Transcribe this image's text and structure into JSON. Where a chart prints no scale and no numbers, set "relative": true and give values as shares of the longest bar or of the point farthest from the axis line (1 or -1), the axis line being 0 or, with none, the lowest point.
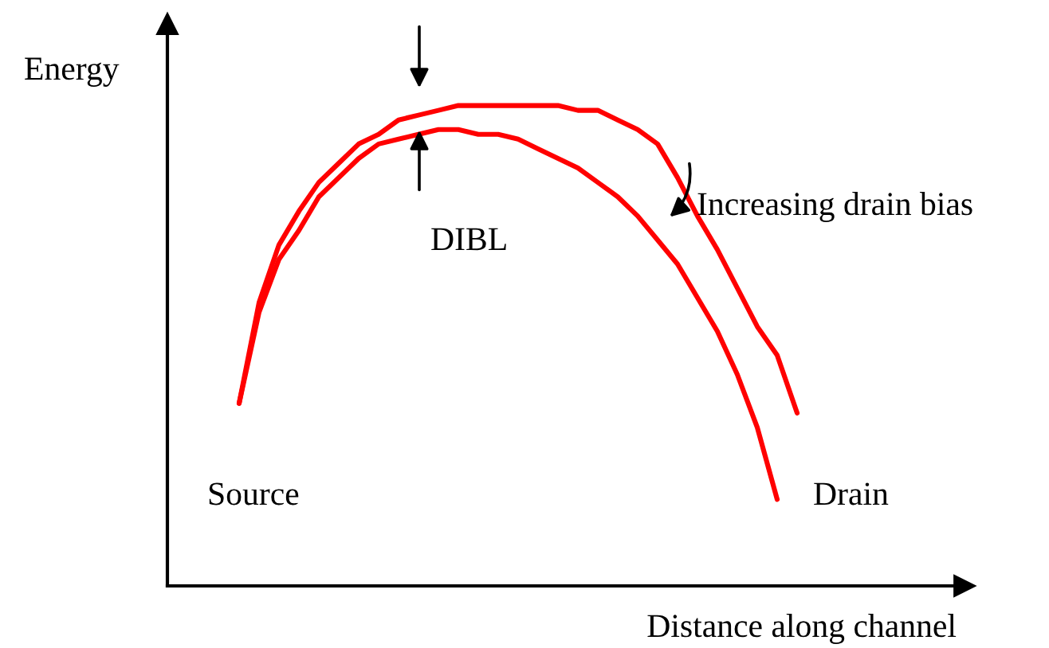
{
  "chart_data": {
    "type": "line",
    "relative": true,
    "xlabel": "Distance along channel",
    "ylabel": "Energy",
    "annotations": [
      "DIBL",
      "Increasing drain bias",
      "Source",
      "Drain"
    ],
    "categories": [
      null,
      null,
      null,
      null,
      null,
      null,
      null,
      null,
      null,
      null,
      null,
      null,
      null,
      null,
      null,
      null,
      null,
      null,
      null,
      null,
      null,
      null,
      null,
      null,
      null,
      null,
      null,
      null,
      null
    ],
    "series": [
      {
        "color": "#ff0000",
        "values": [
          0.38,
          0.59,
          0.71,
          0.78,
          0.84,
          0.88,
          0.92,
          0.94,
          0.97,
          0.98,
          0.99,
          1,
          1,
          1,
          1,
          1,
          1,
          0.99,
          0.99,
          0.97,
          0.95,
          0.92,
          0.85,
          0.77,
          0.7,
          0.62,
          0.54,
          0.48,
          0.36
        ]
      },
      {
        "color": "#ff0000",
        "values": [
          0.38,
          0.57,
          0.68,
          0.74,
          0.81,
          0.85,
          0.89,
          0.92,
          0.93,
          0.94,
          0.95,
          0.95,
          0.94,
          0.94,
          0.93,
          0.91,
          0.89,
          0.87,
          0.84,
          0.81,
          0.77,
          0.72,
          0.67,
          0.6,
          0.53,
          0.44,
          0.33,
          0.18,
          null
        ]
      }
    ]
  }
}
